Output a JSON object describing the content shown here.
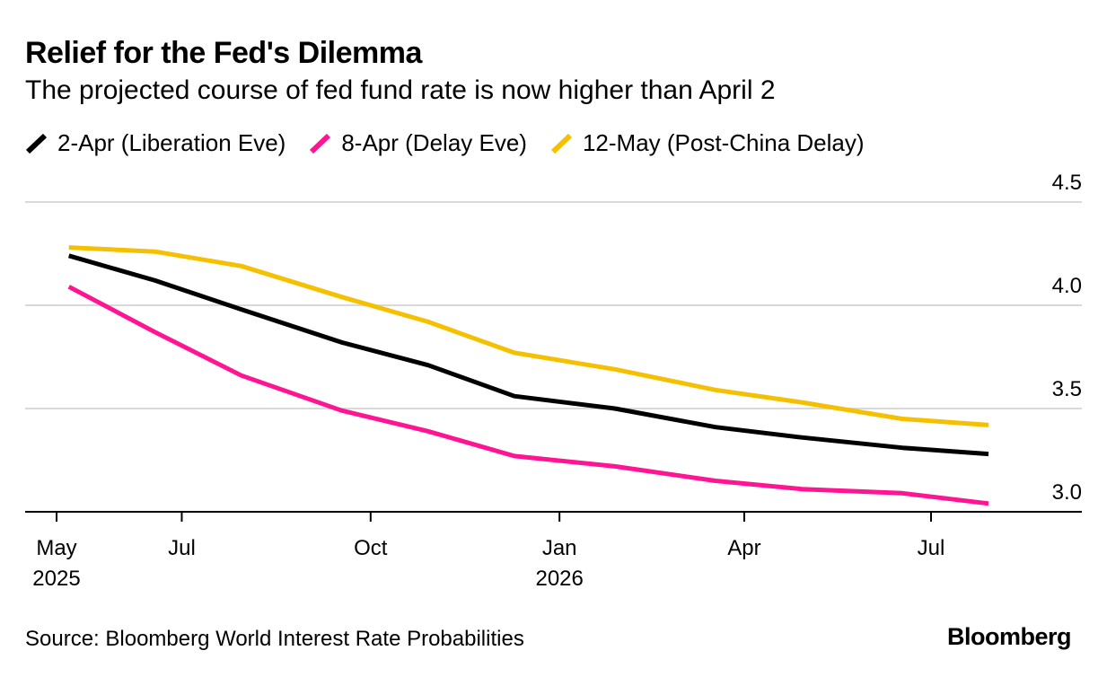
{
  "header": {
    "title": "Relief for the Fed's Dilemma",
    "subtitle": "The projected course of fed fund rate is now higher than April 2"
  },
  "footer": {
    "source": "Source: Bloomberg World Interest Rate Probabilities",
    "brand": "Bloomberg"
  },
  "chart_data": {
    "type": "line",
    "title": "Relief for the Fed's Dilemma",
    "subtitle": "The projected course of fed fund rate is now higher than April 2",
    "xlabel": "",
    "ylabel": "",
    "ylim": [
      3.0,
      4.5
    ],
    "y_axis_side": "right",
    "grid": true,
    "legend_placement": "top-left",
    "y_ticks": [
      "4.5",
      "4.0",
      "3.5",
      "3.0"
    ],
    "x_ticks": [
      {
        "date": "2025-05-01",
        "label": "May",
        "year": "2025"
      },
      {
        "date": "2025-07-01",
        "label": "Jul",
        "year": ""
      },
      {
        "date": "2025-10-01",
        "label": "Oct",
        "year": ""
      },
      {
        "date": "2026-01-01",
        "label": "Jan",
        "year": "2026"
      },
      {
        "date": "2026-04-01",
        "label": "Apr",
        "year": ""
      },
      {
        "date": "2026-07-01",
        "label": "Jul",
        "year": ""
      }
    ],
    "x": [
      "2025-05-07",
      "2025-06-18",
      "2025-07-30",
      "2025-09-17",
      "2025-10-29",
      "2025-12-10",
      "2026-01-28",
      "2026-03-18",
      "2026-04-29",
      "2026-06-17",
      "2026-07-29"
    ],
    "series": [
      {
        "name": "2-Apr (Liberation Eve)",
        "color": "#000000",
        "values": [
          4.24,
          4.12,
          3.98,
          3.82,
          3.71,
          3.56,
          3.5,
          3.41,
          3.36,
          3.31,
          3.28
        ]
      },
      {
        "name": "8-Apr (Delay Eve)",
        "color": "#ff1493",
        "values": [
          4.09,
          3.87,
          3.66,
          3.49,
          3.39,
          3.27,
          3.22,
          3.15,
          3.11,
          3.09,
          3.04
        ]
      },
      {
        "name": "12-May (Post-China Delay)",
        "color": "#f5c000",
        "values": [
          4.28,
          4.26,
          4.19,
          4.04,
          3.92,
          3.77,
          3.69,
          3.59,
          3.53,
          3.45,
          3.42
        ]
      }
    ]
  }
}
